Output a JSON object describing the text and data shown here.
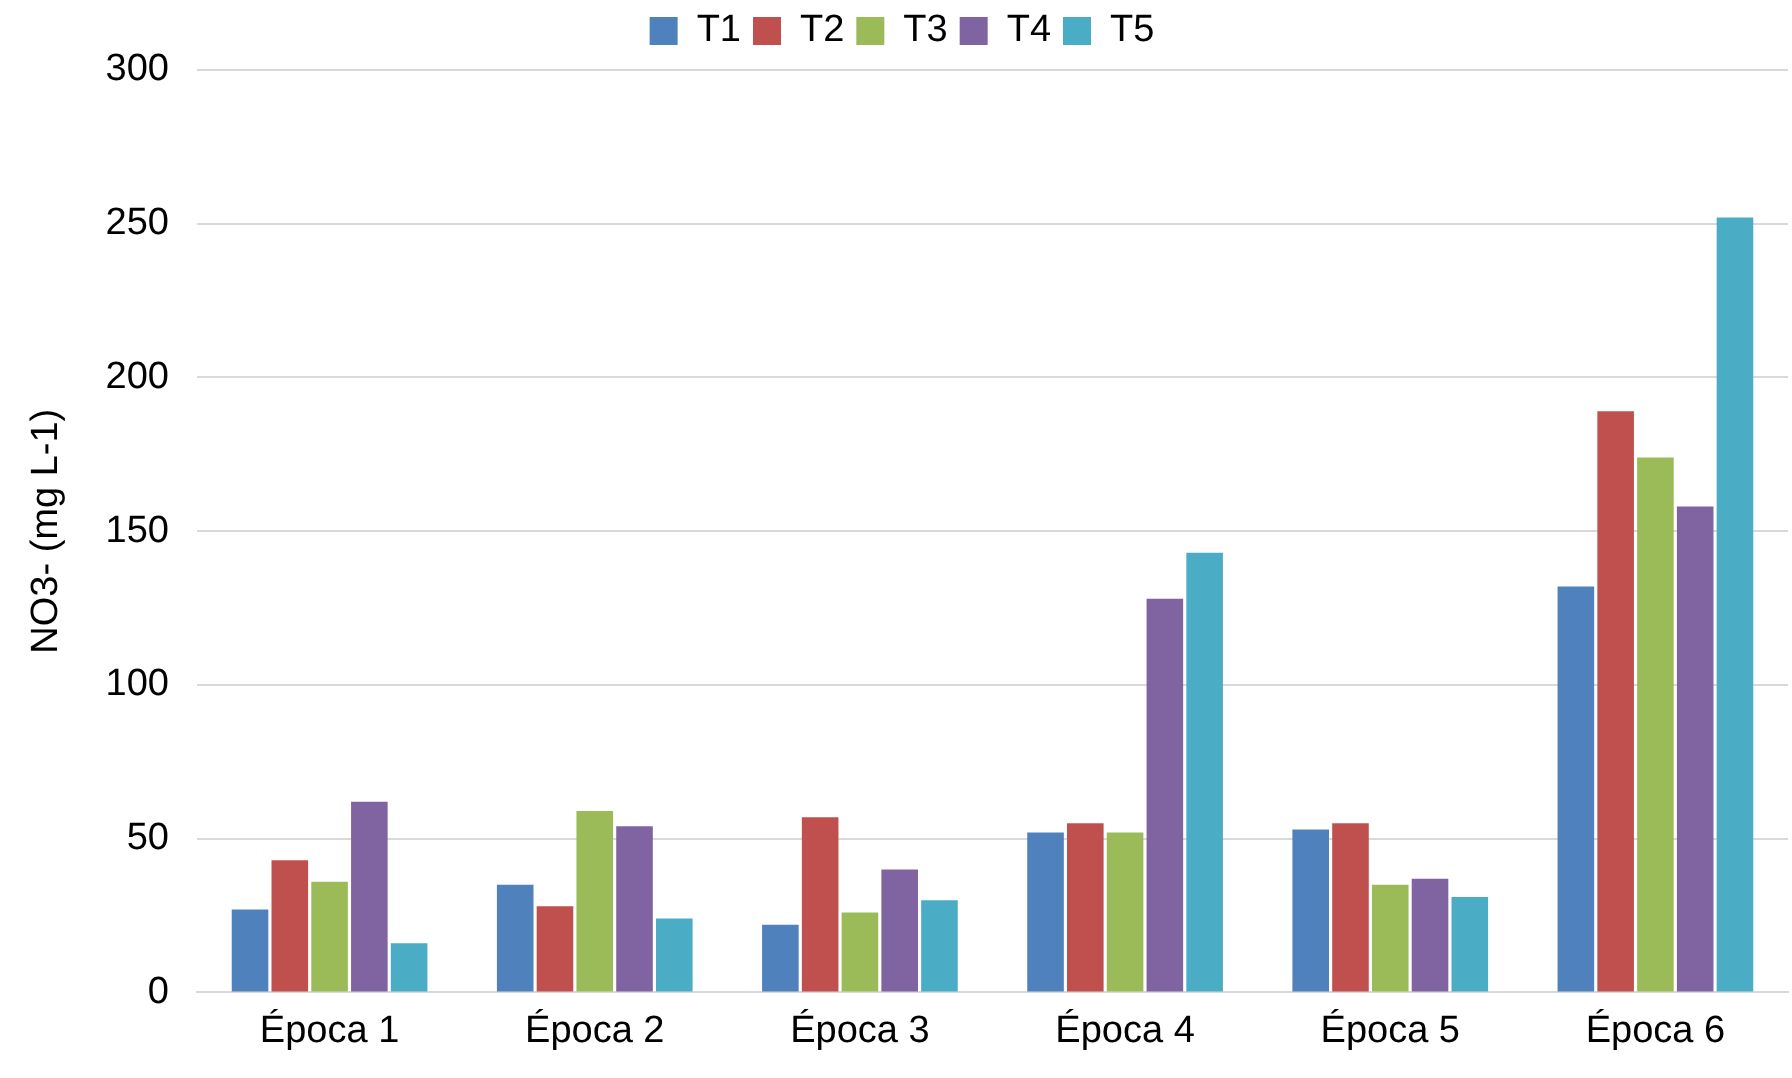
{
  "chart_data": {
    "type": "bar",
    "ylabel": "NO3- (mg L-1)",
    "categories": [
      "Época 1",
      "Época 2",
      "Época 3",
      "Época 4",
      "Época 5",
      "Época 6"
    ],
    "series": [
      {
        "name": "T1",
        "color": "#4f81bd",
        "values": [
          27,
          35,
          22,
          52,
          53,
          132
        ]
      },
      {
        "name": "T2",
        "color": "#c0504d",
        "values": [
          43,
          28,
          57,
          55,
          55,
          189
        ]
      },
      {
        "name": "T3",
        "color": "#9bbb59",
        "values": [
          36,
          59,
          26,
          52,
          35,
          174
        ]
      },
      {
        "name": "T4",
        "color": "#8064a2",
        "values": [
          62,
          54,
          40,
          128,
          37,
          158
        ]
      },
      {
        "name": "T5",
        "color": "#4bacc6",
        "values": [
          16,
          24,
          30,
          143,
          31,
          252
        ]
      }
    ],
    "ylim": [
      0,
      300
    ],
    "yticks": [
      0,
      50,
      100,
      150,
      200,
      250,
      300
    ],
    "grid": "y",
    "legend": "top"
  }
}
